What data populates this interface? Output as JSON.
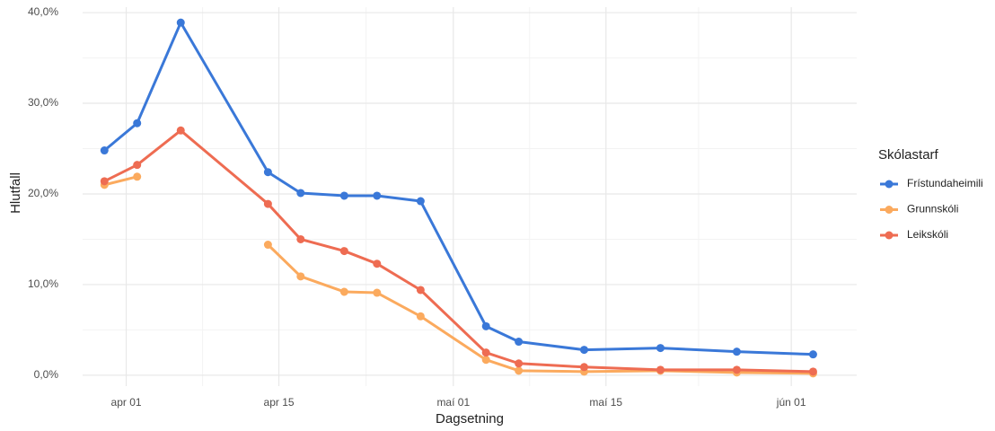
{
  "chart_data": {
    "type": "line",
    "x_label": "Dagsetning",
    "y_label": "Hlutfall",
    "legend_title": "Skólastarf",
    "x": [
      "03-30",
      "04-02",
      "04-06",
      "04-14",
      "04-17",
      "04-21",
      "04-24",
      "04-28",
      "05-04",
      "05-07",
      "05-13",
      "05-20",
      "05-27",
      "06-03"
    ],
    "series": [
      {
        "name": "Frístundaheimili",
        "color": "#3a78d8",
        "values": [
          24.8,
          27.8,
          38.9,
          22.4,
          20.1,
          19.8,
          19.8,
          19.2,
          5.4,
          3.7,
          2.8,
          3.0,
          2.6,
          2.3
        ]
      },
      {
        "name": "Grunnskóli",
        "color": "#fbaa5e",
        "values": [
          21.0,
          21.9,
          null,
          14.4,
          10.9,
          9.2,
          9.1,
          6.5,
          1.7,
          0.5,
          0.4,
          0.5,
          0.3,
          0.2
        ]
      },
      {
        "name": "Leikskóli",
        "color": "#ee6c52",
        "values": [
          21.4,
          23.2,
          27.0,
          18.9,
          15.0,
          13.7,
          12.3,
          9.4,
          2.5,
          1.3,
          0.9,
          0.6,
          0.6,
          0.4
        ]
      }
    ],
    "xlim": [
      "03-28",
      "06-07"
    ],
    "xticks": [
      {
        "value": "04-01",
        "label": "apr 01"
      },
      {
        "value": "04-15",
        "label": "apr 15"
      },
      {
        "value": "05-01",
        "label": "maí 01"
      },
      {
        "value": "05-15",
        "label": "maí 15"
      },
      {
        "value": "06-01",
        "label": "jún 01"
      }
    ],
    "ylim": [
      -1.2,
      40.6
    ],
    "yticks": [
      {
        "value": 0,
        "label": "0,0%"
      },
      {
        "value": 10,
        "label": "10,0%"
      },
      {
        "value": 20,
        "label": "20,0%"
      },
      {
        "value": 30,
        "label": "30,0%"
      },
      {
        "value": 40,
        "label": "40,0%"
      }
    ],
    "grid": true,
    "legend": "right"
  }
}
